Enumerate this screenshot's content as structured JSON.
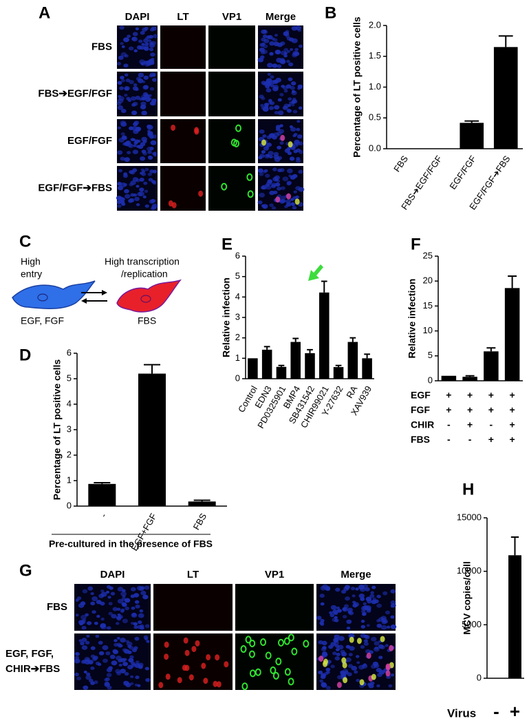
{
  "figure_a": {
    "panel_label": "A",
    "columns": [
      "DAPI",
      "LT",
      "VP1",
      "Merge"
    ],
    "rows": [
      "FBS",
      "FBS➔EGF/FGF",
      "EGF/FGF",
      "EGF/FGF➔FBS"
    ]
  },
  "diagram_c": {
    "panel_label": "C",
    "left_top": [
      "High",
      "entry"
    ],
    "right_top": [
      "High transcription",
      "/replication"
    ],
    "left_bottom": "EGF, FGF",
    "right_bottom": "FBS"
  },
  "figure_g": {
    "panel_label": "G",
    "columns": [
      "DAPI",
      "LT",
      "VP1",
      "Merge"
    ],
    "rows": [
      [
        "FBS"
      ],
      [
        "EGF, FGF,",
        "CHIR➔FBS"
      ]
    ]
  },
  "chart_data": [
    {
      "type": "bar",
      "panel_label": "B",
      "y_label": "Percentage of LT positive cells",
      "color": "#000000",
      "categories": [
        "FBS",
        "FBS➔EGF/FGF",
        "EGF/FGF",
        "EGF/FGF➔FBS"
      ],
      "values": [
        0,
        0,
        0.42,
        1.65
      ],
      "errors": [
        0,
        0,
        0.03,
        0.18
      ],
      "ylim": [
        0,
        2
      ],
      "yticks": [
        {
          "value": 0,
          "label": "0.0"
        },
        {
          "value": 0.5,
          "label": "0.5"
        },
        {
          "value": 1,
          "label": "1.0"
        },
        {
          "value": 1.5,
          "label": "1.5"
        },
        {
          "value": 2,
          "label": "2.0"
        }
      ]
    },
    {
      "type": "bar",
      "panel_label": "D",
      "y_label": "Percentage of LT positive cells",
      "x_label": "Pre-cultured in the presence of FBS",
      "color": "#000000",
      "categories": [
        "-",
        "EGF+FGF",
        "FBS"
      ],
      "values": [
        0.87,
        5.2,
        0.18
      ],
      "errors": [
        0.05,
        0.35,
        0.05
      ],
      "ylim": [
        0,
        6
      ],
      "yticks": [
        0,
        1,
        2,
        3,
        4,
        5,
        6
      ]
    },
    {
      "type": "bar",
      "panel_label": "E",
      "y_label": "Relative infection",
      "color": "#000000",
      "categories": [
        "Control",
        "EDN3",
        "PD0325901",
        "BMP4",
        "SB431542",
        "CHIR99021",
        "Y-27632",
        "RA",
        "XAV939"
      ],
      "values": [
        1,
        1.42,
        0.58,
        1.8,
        1.25,
        4.22,
        0.57,
        1.8,
        1.0
      ],
      "errors": [
        0,
        0.15,
        0.07,
        0.17,
        0.17,
        0.55,
        0.08,
        0.2,
        0.2
      ],
      "ylim": [
        0,
        6
      ],
      "yticks": [
        0,
        1,
        2,
        3,
        4,
        5,
        6
      ]
    },
    {
      "type": "bar",
      "panel_label": "F",
      "y_label": "Relative infection",
      "color": "#000000",
      "condition_rows": [
        "EGF",
        "FGF",
        "CHIR",
        "FBS"
      ],
      "condition_signs": [
        [
          "+",
          "+",
          "+",
          "+"
        ],
        [
          "+",
          "+",
          "+",
          "+"
        ],
        [
          "-",
          "+",
          "-",
          "+"
        ],
        [
          "-",
          "-",
          "+",
          "+"
        ]
      ],
      "values": [
        1,
        0.8,
        5.9,
        18.6
      ],
      "errors": [
        0,
        0.2,
        0.7,
        2.4
      ],
      "ylim": [
        0,
        25
      ],
      "yticks": [
        0,
        5,
        10,
        15,
        20,
        25
      ]
    },
    {
      "type": "bar",
      "panel_label": "H",
      "y_label": "MCV copies/cell",
      "x_label": "Virus",
      "color": "#000000",
      "categories": [
        "-",
        "+"
      ],
      "values": [
        0,
        11500
      ],
      "errors": [
        0,
        1700
      ],
      "ylim": [
        0,
        15000
      ],
      "yticks": [
        0,
        5000,
        10000,
        15000
      ]
    }
  ]
}
